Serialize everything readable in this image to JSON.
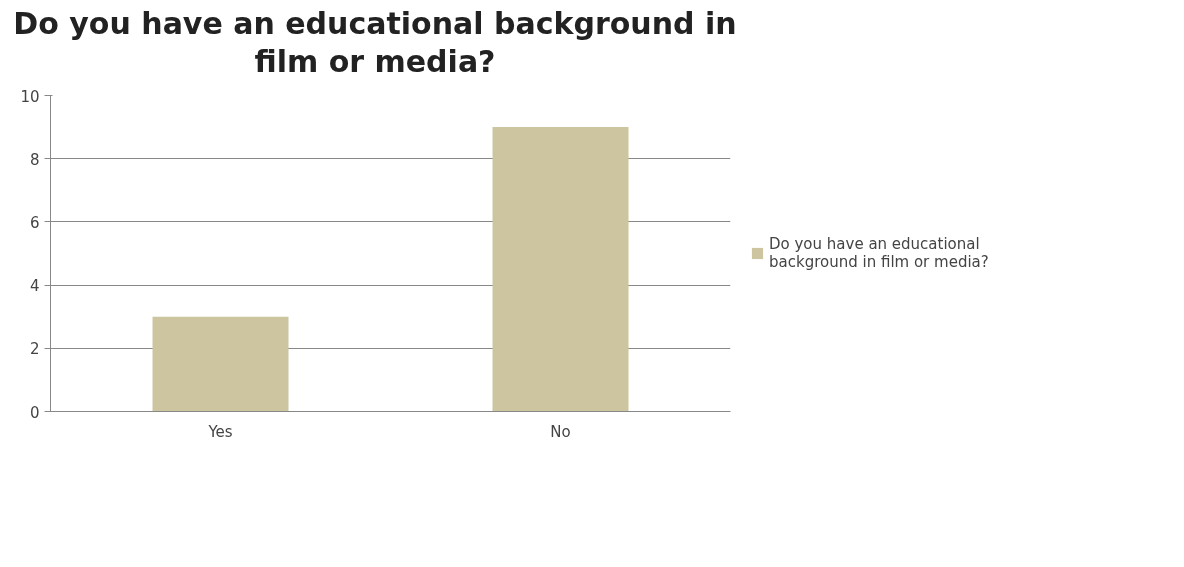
{
  "chart_data": {
    "type": "bar",
    "title": "Do you have an educational background in film or media?",
    "categories": [
      "Yes",
      "No"
    ],
    "series": [
      {
        "name": "Do you have an educational background in film or media?",
        "color": "#ccc5a0",
        "values": [
          3,
          9
        ]
      }
    ],
    "ylim": [
      0,
      10
    ],
    "yticks": [
      0,
      2,
      4,
      6,
      8,
      10
    ],
    "grid": "y",
    "legend": "right"
  }
}
